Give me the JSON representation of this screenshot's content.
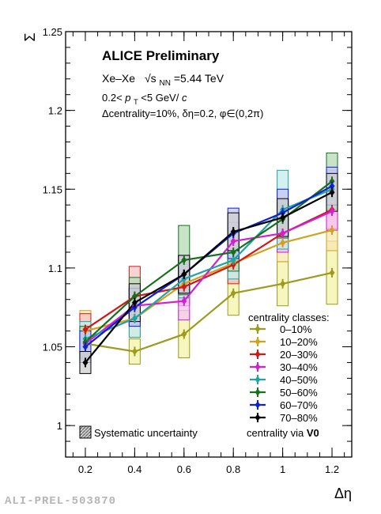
{
  "chart_data": {
    "type": "line",
    "experiment_label": "ALICE Preliminary",
    "collision_system": "Xe–Xe",
    "energy_symbol": "√s",
    "energy_subscript": "NN",
    "energy_value": "=5.44 TeV",
    "pt_range_left": "0.2<",
    "pt_symbol": "p",
    "pt_subscript": "T",
    "pt_range_right": "<5 GeV/",
    "pt_unit_italic": "c",
    "cuts_text": "Δcentrality=10%, δη=0.2, φ∈(0,2π)",
    "xlabel": "Δη",
    "ylabel": "Σ",
    "xlim": [
      0.12,
      1.28
    ],
    "ylim": [
      0.98,
      1.25
    ],
    "x_ticks": [
      "0.2",
      "0.4",
      "0.6",
      "0.8",
      "1",
      "1.2"
    ],
    "y_ticks": [
      "1",
      "1.05",
      "1.1",
      "1.15",
      "1.2",
      "1.25"
    ],
    "x": [
      0.2,
      0.4,
      0.6,
      0.8,
      1.0,
      1.2
    ],
    "legend_title": "centrality classes:",
    "legend_position": "bottom-right",
    "systematic_label": "Systematic uncertainty",
    "estimator_prefix": "centrality via ",
    "estimator_name": "V0",
    "series": [
      {
        "name": "0–10%",
        "color": "#9c9b1e",
        "box_fill": "#f3f3a8",
        "values": [
          1.052,
          1.047,
          1.058,
          1.084,
          1.09,
          1.097
        ],
        "syst": [
          0.006,
          0.008,
          0.015,
          0.014,
          0.014,
          0.02
        ]
      },
      {
        "name": "10–20%",
        "color": "#d2a11d",
        "box_fill": "#f6e7b0",
        "values": [
          1.06,
          1.068,
          1.09,
          1.103,
          1.116,
          1.124
        ],
        "syst": [
          0.013,
          0.012,
          0.012,
          0.012,
          0.012,
          0.013
        ]
      },
      {
        "name": "20–30%",
        "color": "#d01818",
        "box_fill": "#f4c6c6",
        "values": [
          1.061,
          1.082,
          1.088,
          1.102,
          1.122,
          1.137
        ],
        "syst": [
          0.01,
          0.019,
          0.012,
          0.012,
          0.012,
          0.012
        ]
      },
      {
        "name": "30–40%",
        "color": "#d21fd2",
        "box_fill": "#f4c5f4",
        "values": [
          1.052,
          1.076,
          1.079,
          1.117,
          1.122,
          1.136
        ],
        "syst": [
          0.01,
          0.012,
          0.012,
          0.012,
          0.012,
          0.012
        ]
      },
      {
        "name": "40–50%",
        "color": "#1fa3a3",
        "box_fill": "#c4ecec",
        "values": [
          1.055,
          1.068,
          1.093,
          1.105,
          1.137,
          1.15
        ],
        "syst": [
          0.011,
          0.012,
          0.012,
          0.012,
          0.025,
          0.012
        ]
      },
      {
        "name": "50–60%",
        "color": "#16701a",
        "box_fill": "#b7d9b6",
        "values": [
          1.053,
          1.082,
          1.105,
          1.11,
          1.131,
          1.155
        ],
        "syst": [
          0.01,
          0.012,
          0.022,
          0.012,
          0.012,
          0.018
        ]
      },
      {
        "name": "60–70%",
        "color": "#1020d0",
        "box_fill": "#c2c6f4",
        "values": [
          1.05,
          1.075,
          1.096,
          1.122,
          1.135,
          1.152
        ],
        "syst": [
          0.01,
          0.012,
          0.012,
          0.016,
          0.015,
          0.012
        ]
      },
      {
        "name": "70–80%",
        "color": "#000000",
        "box_fill": "#cfcfcf",
        "values": [
          1.04,
          1.078,
          1.096,
          1.123,
          1.132,
          1.148
        ],
        "syst": [
          0.007,
          0.012,
          0.012,
          0.012,
          0.012,
          0.012
        ]
      }
    ]
  },
  "footer_label": "ALI-PREL-503870"
}
